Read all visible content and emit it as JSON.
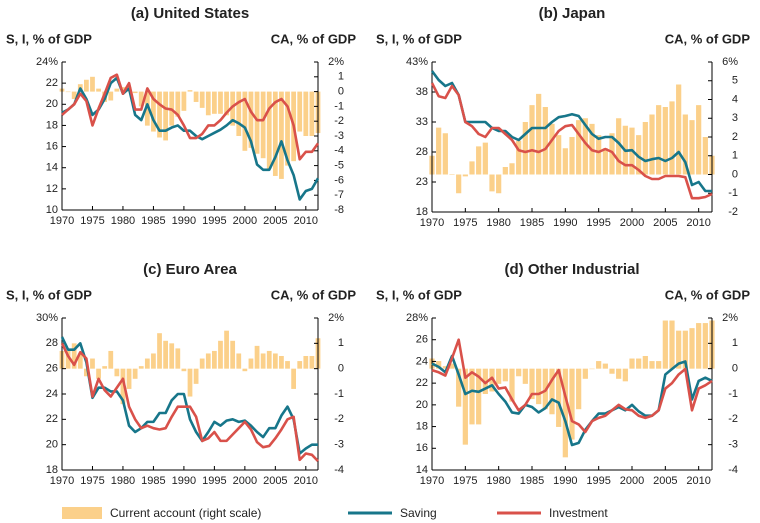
{
  "chart_data": [
    {
      "type": "combo",
      "title": "(a) United States",
      "ylabel": "S, I, % of GDP",
      "y2label": "CA, % of GDP",
      "x": [
        1970,
        1971,
        1972,
        1973,
        1974,
        1975,
        1976,
        1977,
        1978,
        1979,
        1980,
        1981,
        1982,
        1983,
        1984,
        1985,
        1986,
        1987,
        1988,
        1989,
        1990,
        1991,
        1992,
        1993,
        1994,
        1995,
        1996,
        1997,
        1998,
        1999,
        2000,
        2001,
        2002,
        2003,
        2004,
        2005,
        2006,
        2007,
        2008,
        2009,
        2010,
        2011,
        2012
      ],
      "xlim": [
        1970,
        2012
      ],
      "xticks": [
        1970,
        1975,
        1980,
        1985,
        1990,
        1995,
        2000,
        2005,
        2010
      ],
      "ylim": [
        10,
        24
      ],
      "yticks": [
        {
          "value": 24,
          "label": "24%"
        },
        22,
        20,
        18,
        16,
        14,
        12,
        10
      ],
      "y2lim": [
        -8,
        2
      ],
      "y2ticks": [
        {
          "value": 2,
          "label": "2%"
        },
        1,
        0,
        -1,
        -2,
        -3,
        -4,
        -5,
        -6,
        -7,
        -8
      ],
      "series": [
        {
          "name": "Current account (right scale)",
          "type": "bar",
          "axis": "y2",
          "color": "#fbd08a",
          "values": [
            0.2,
            0,
            -0.5,
            0.5,
            0.8,
            1,
            0.2,
            -0.7,
            -0.6,
            0.2,
            0.3,
            0.3,
            -0.1,
            -1,
            -2.3,
            -2.7,
            -3.1,
            -3.3,
            -2.3,
            -1.7,
            -1.3,
            0.1,
            -0.7,
            -1.1,
            -1.6,
            -1.5,
            -1.5,
            -1.6,
            -2.3,
            -3,
            -4,
            -3.8,
            -4.2,
            -4.5,
            -5.2,
            -5.7,
            -5.9,
            -5,
            -4.7,
            -2.7,
            -3,
            -3,
            -2.8
          ]
        },
        {
          "name": "Saving",
          "type": "line",
          "color": "#17768a",
          "values": [
            19.2,
            19.5,
            20,
            21.5,
            20.5,
            19,
            19.5,
            20.5,
            22,
            22.5,
            21,
            21.5,
            19,
            18.5,
            20,
            18.5,
            17.5,
            17.5,
            17.8,
            18,
            17.5,
            17.5,
            17,
            16.7,
            17,
            17.3,
            17.6,
            18,
            18.5,
            18.2,
            17.8,
            16.5,
            14.3,
            13.8,
            13.8,
            15,
            16.5,
            14.7,
            13.3,
            11,
            11.8,
            12,
            13
          ]
        },
        {
          "name": "Investment",
          "type": "line",
          "color": "#d9514a",
          "values": [
            19,
            19.5,
            20,
            21,
            20.3,
            18,
            19.6,
            21,
            22.5,
            22.8,
            21,
            22,
            19.5,
            19.5,
            21.5,
            20.5,
            20,
            19.6,
            19.5,
            19,
            18,
            16.8,
            16.8,
            17.2,
            18,
            18,
            18.5,
            19.2,
            19.8,
            20.2,
            20.5,
            19.3,
            18.5,
            18.5,
            19.6,
            20.2,
            20.5,
            19.8,
            18,
            14.8,
            15.5,
            15.5,
            16.3
          ]
        }
      ]
    },
    {
      "type": "combo",
      "title": "(b) Japan",
      "ylabel": "S, I, % of GDP",
      "y2label": "CA, % of GDP",
      "x": [
        1970,
        1971,
        1972,
        1973,
        1974,
        1975,
        1976,
        1977,
        1978,
        1979,
        1980,
        1981,
        1982,
        1983,
        1984,
        1985,
        1986,
        1987,
        1988,
        1989,
        1990,
        1991,
        1992,
        1993,
        1994,
        1995,
        1996,
        1997,
        1998,
        1999,
        2000,
        2001,
        2002,
        2003,
        2004,
        2005,
        2006,
        2007,
        2008,
        2009,
        2010,
        2011,
        2012
      ],
      "xlim": [
        1970,
        2012
      ],
      "xticks": [
        1970,
        1975,
        1980,
        1985,
        1990,
        1995,
        2000,
        2005,
        2010
      ],
      "ylim": [
        18,
        43
      ],
      "yticks": [
        {
          "value": 43,
          "label": "43%"
        },
        38,
        33,
        28,
        23,
        18
      ],
      "y2lim": [
        -2,
        6
      ],
      "y2ticks": [
        {
          "value": 6,
          "label": "6%"
        },
        5,
        4,
        3,
        2,
        1,
        0,
        -1,
        -2
      ],
      "series": [
        {
          "type": "bar",
          "axis": "y2",
          "color": "#fbd08a",
          "values": [
            1,
            2.5,
            2.2,
            0,
            -1,
            -0.1,
            0.7,
            1.5,
            1.7,
            -0.9,
            -1,
            0.4,
            0.6,
            1.8,
            2.8,
            3.7,
            4.3,
            3.6,
            2.7,
            2.1,
            1.4,
            2,
            2.9,
            3,
            2.7,
            2.1,
            1.4,
            2.2,
            3,
            2.6,
            2.5,
            2.1,
            2.8,
            3.2,
            3.7,
            3.6,
            3.9,
            4.8,
            3.2,
            2.9,
            3.7,
            2,
            1
          ]
        },
        {
          "type": "line",
          "color": "#17768a",
          "values": [
            41.5,
            40,
            39,
            39.5,
            37.5,
            33,
            33,
            33,
            33,
            32,
            31.5,
            31.5,
            30.5,
            30,
            31,
            32,
            32,
            32,
            33,
            33.8,
            34,
            34.3,
            34,
            32.5,
            31,
            30.2,
            30.5,
            30.5,
            29.5,
            28.2,
            28.3,
            27.2,
            26.5,
            26.8,
            27,
            26.5,
            27,
            28,
            26.3,
            22.5,
            23,
            21.5,
            21.5
          ]
        },
        {
          "type": "line",
          "color": "#d9514a",
          "values": [
            39.5,
            37.3,
            37,
            39,
            37.5,
            33,
            32.3,
            31,
            30.5,
            32,
            32,
            31,
            30,
            28.3,
            28,
            28.3,
            28,
            28.5,
            30,
            31.5,
            32.3,
            32.5,
            31,
            29.5,
            28.3,
            28,
            28.5,
            28,
            26.5,
            25.8,
            25.8,
            25,
            24,
            23.5,
            23.5,
            24,
            24,
            24,
            23.8,
            20.3,
            20.3,
            20.5,
            21
          ]
        }
      ]
    },
    {
      "type": "combo",
      "title": "(c) Euro Area",
      "ylabel": "S, I, % of GDP",
      "y2label": "CA, % of GDP",
      "x": [
        1970,
        1971,
        1972,
        1973,
        1974,
        1975,
        1976,
        1977,
        1978,
        1979,
        1980,
        1981,
        1982,
        1983,
        1984,
        1985,
        1986,
        1987,
        1988,
        1989,
        1990,
        1991,
        1992,
        1993,
        1994,
        1995,
        1996,
        1997,
        1998,
        1999,
        2000,
        2001,
        2002,
        2003,
        2004,
        2005,
        2006,
        2007,
        2008,
        2009,
        2010,
        2011,
        2012
      ],
      "xlim": [
        1970,
        2012
      ],
      "xticks": [
        1970,
        1975,
        1980,
        1985,
        1990,
        1995,
        2000,
        2005,
        2010
      ],
      "ylim": [
        18,
        30
      ],
      "yticks": [
        {
          "value": 30,
          "label": "30%"
        },
        28,
        26,
        24,
        22,
        20,
        18
      ],
      "y2lim": [
        -4,
        2
      ],
      "y2ticks": [
        {
          "value": 2,
          "label": "2%"
        },
        1,
        0,
        -1,
        -2,
        -3,
        -4
      ],
      "series": [
        {
          "type": "bar",
          "axis": "y2",
          "color": "#fbd08a",
          "values": [
            0.7,
            0.7,
            1,
            0.6,
            -0.3,
            0.4,
            -0.4,
            0.1,
            0.7,
            -0.3,
            -1.4,
            -0.8,
            -0.4,
            0.1,
            0.4,
            0.6,
            1.4,
            1.1,
            1,
            0.8,
            -0.1,
            -1.1,
            -0.6,
            0.4,
            0.6,
            0.7,
            1.1,
            1.5,
            1.1,
            0.6,
            -0.1,
            0.4,
            0.9,
            0.6,
            0.7,
            0.6,
            0.5,
            0.3,
            -0.8,
            0.3,
            0.5,
            0.5,
            1.2
          ]
        },
        {
          "type": "line",
          "color": "#17768a",
          "values": [
            28.5,
            27.5,
            27.5,
            28,
            26.5,
            23.7,
            24.5,
            24.5,
            24.2,
            24.2,
            23.5,
            21.5,
            21,
            21.3,
            21.8,
            21.8,
            22.5,
            22.5,
            23.5,
            24,
            24,
            22,
            21,
            20.3,
            21,
            21.8,
            21.5,
            21.9,
            22,
            21.8,
            21.9,
            21.5,
            21,
            20.6,
            21.3,
            21.3,
            22.3,
            23,
            22,
            19.3,
            19.7,
            20,
            20
          ]
        },
        {
          "type": "line",
          "color": "#d9514a",
          "values": [
            28,
            27,
            26.3,
            27.3,
            26.8,
            23.8,
            25.2,
            24.3,
            23.8,
            24.5,
            25.2,
            23,
            22,
            21.3,
            21.5,
            21.3,
            21.2,
            21.3,
            22.2,
            23,
            23,
            23,
            22.2,
            20.3,
            20.5,
            21,
            20.3,
            20.3,
            20.8,
            21.3,
            21.8,
            21.2,
            20.2,
            19.8,
            19.9,
            20.5,
            21.2,
            22,
            22.2,
            18.8,
            19.3,
            19.2,
            18.7
          ]
        }
      ]
    },
    {
      "type": "combo",
      "title": "(d) Other Industrial",
      "ylabel": "S, I, % of GDP",
      "y2label": "CA, % of GDP",
      "x": [
        1970,
        1971,
        1972,
        1973,
        1974,
        1975,
        1976,
        1977,
        1978,
        1979,
        1980,
        1981,
        1982,
        1983,
        1984,
        1985,
        1986,
        1987,
        1988,
        1989,
        1990,
        1991,
        1992,
        1993,
        1994,
        1995,
        1996,
        1997,
        1998,
        1999,
        2000,
        2001,
        2002,
        2003,
        2004,
        2005,
        2006,
        2007,
        2008,
        2009,
        2010,
        2011,
        2012
      ],
      "xlim": [
        1970,
        2012
      ],
      "xticks": [
        1970,
        1975,
        1980,
        1985,
        1990,
        1995,
        2000,
        2005,
        2010
      ],
      "ylim": [
        14,
        28
      ],
      "yticks": [
        {
          "value": 28,
          "label": "28%"
        },
        26,
        24,
        22,
        20,
        18,
        16,
        14
      ],
      "y2lim": [
        -4,
        2
      ],
      "y2ticks": [
        {
          "value": 2,
          "label": "2%"
        },
        1,
        0,
        -1,
        -2,
        -3,
        -4
      ],
      "series": [
        {
          "type": "bar",
          "axis": "y2",
          "color": "#fbd08a",
          "values": [
            0.4,
            0.3,
            0.1,
            0.2,
            -1.5,
            -3,
            -2.2,
            -2.2,
            -1,
            -0.9,
            -0.6,
            -0.5,
            -1.3,
            -0.3,
            -0.6,
            -1.2,
            -1.4,
            -1.6,
            -1.8,
            -2.3,
            -3.5,
            -2.8,
            -1.6,
            -0.4,
            0,
            0.3,
            0.2,
            -0.2,
            -0.4,
            -0.5,
            0.4,
            0.4,
            0.5,
            0.3,
            0.3,
            1.9,
            1.9,
            1.5,
            1.5,
            1.6,
            1.8,
            1.8,
            1.9
          ]
        },
        {
          "type": "line",
          "color": "#17768a",
          "values": [
            23.8,
            23.5,
            23,
            24.5,
            22.8,
            21,
            21.3,
            21.2,
            21.5,
            21.8,
            21,
            20.3,
            19.3,
            19.2,
            20,
            19.8,
            19.3,
            19.7,
            20.5,
            20.2,
            18.5,
            16.3,
            16.5,
            17.7,
            18.5,
            19.2,
            19.2,
            19.5,
            19.8,
            19.5,
            20,
            19.4,
            19,
            19,
            19.5,
            22.8,
            23.3,
            23.8,
            24,
            20.5,
            22.2,
            22.5,
            22.2
          ]
        },
        {
          "type": "line",
          "color": "#d9514a",
          "values": [
            23.2,
            23,
            22.7,
            24.3,
            26,
            22.5,
            23,
            22.6,
            22,
            22.5,
            21.5,
            21.6,
            20.5,
            19.5,
            20,
            21,
            21,
            21.3,
            22.3,
            23.2,
            20.8,
            18.5,
            18.2,
            17.5,
            18.5,
            18.8,
            19,
            19.5,
            20,
            19.6,
            19.5,
            19,
            18.8,
            19,
            19.5,
            21.5,
            22,
            22.8,
            23.3,
            19.5,
            21.5,
            21.8,
            22.2
          ]
        }
      ]
    }
  ]
}
